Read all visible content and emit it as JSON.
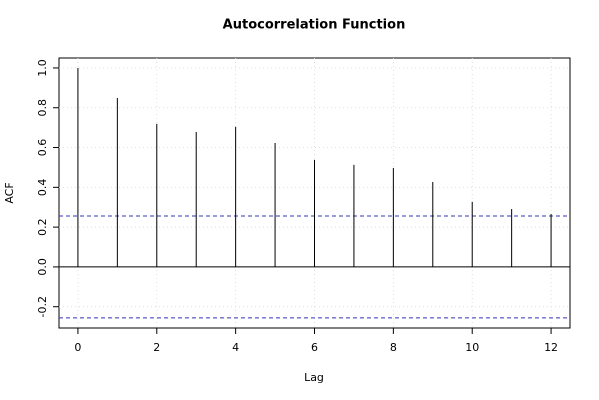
{
  "chart_data": {
    "type": "stem",
    "title": "Autocorrelation Function",
    "x_label": "Lag",
    "y_label": "ACF",
    "x": [
      0,
      1,
      2,
      3,
      4,
      5,
      6,
      7,
      8,
      9,
      10,
      11,
      12
    ],
    "values": [
      1.0,
      0.849,
      0.719,
      0.678,
      0.704,
      0.623,
      0.538,
      0.513,
      0.497,
      0.427,
      0.327,
      0.291,
      0.266
    ],
    "color": "#000000",
    "confidence_bounds": [
      0.256,
      -0.256
    ],
    "confidence_color": "#3333bb",
    "xlim": [
      -0.48,
      12.48
    ],
    "xticks": [
      0,
      2,
      4,
      6,
      8,
      10,
      12
    ],
    "ylim": [
      -0.307,
      1.05
    ],
    "yticks": [
      -0.2,
      {
        "value": 0,
        "label": "0.0"
      },
      0.2,
      0.4,
      0.6,
      0.8,
      {
        "value": 1,
        "label": "1.0"
      }
    ],
    "grid": true
  }
}
